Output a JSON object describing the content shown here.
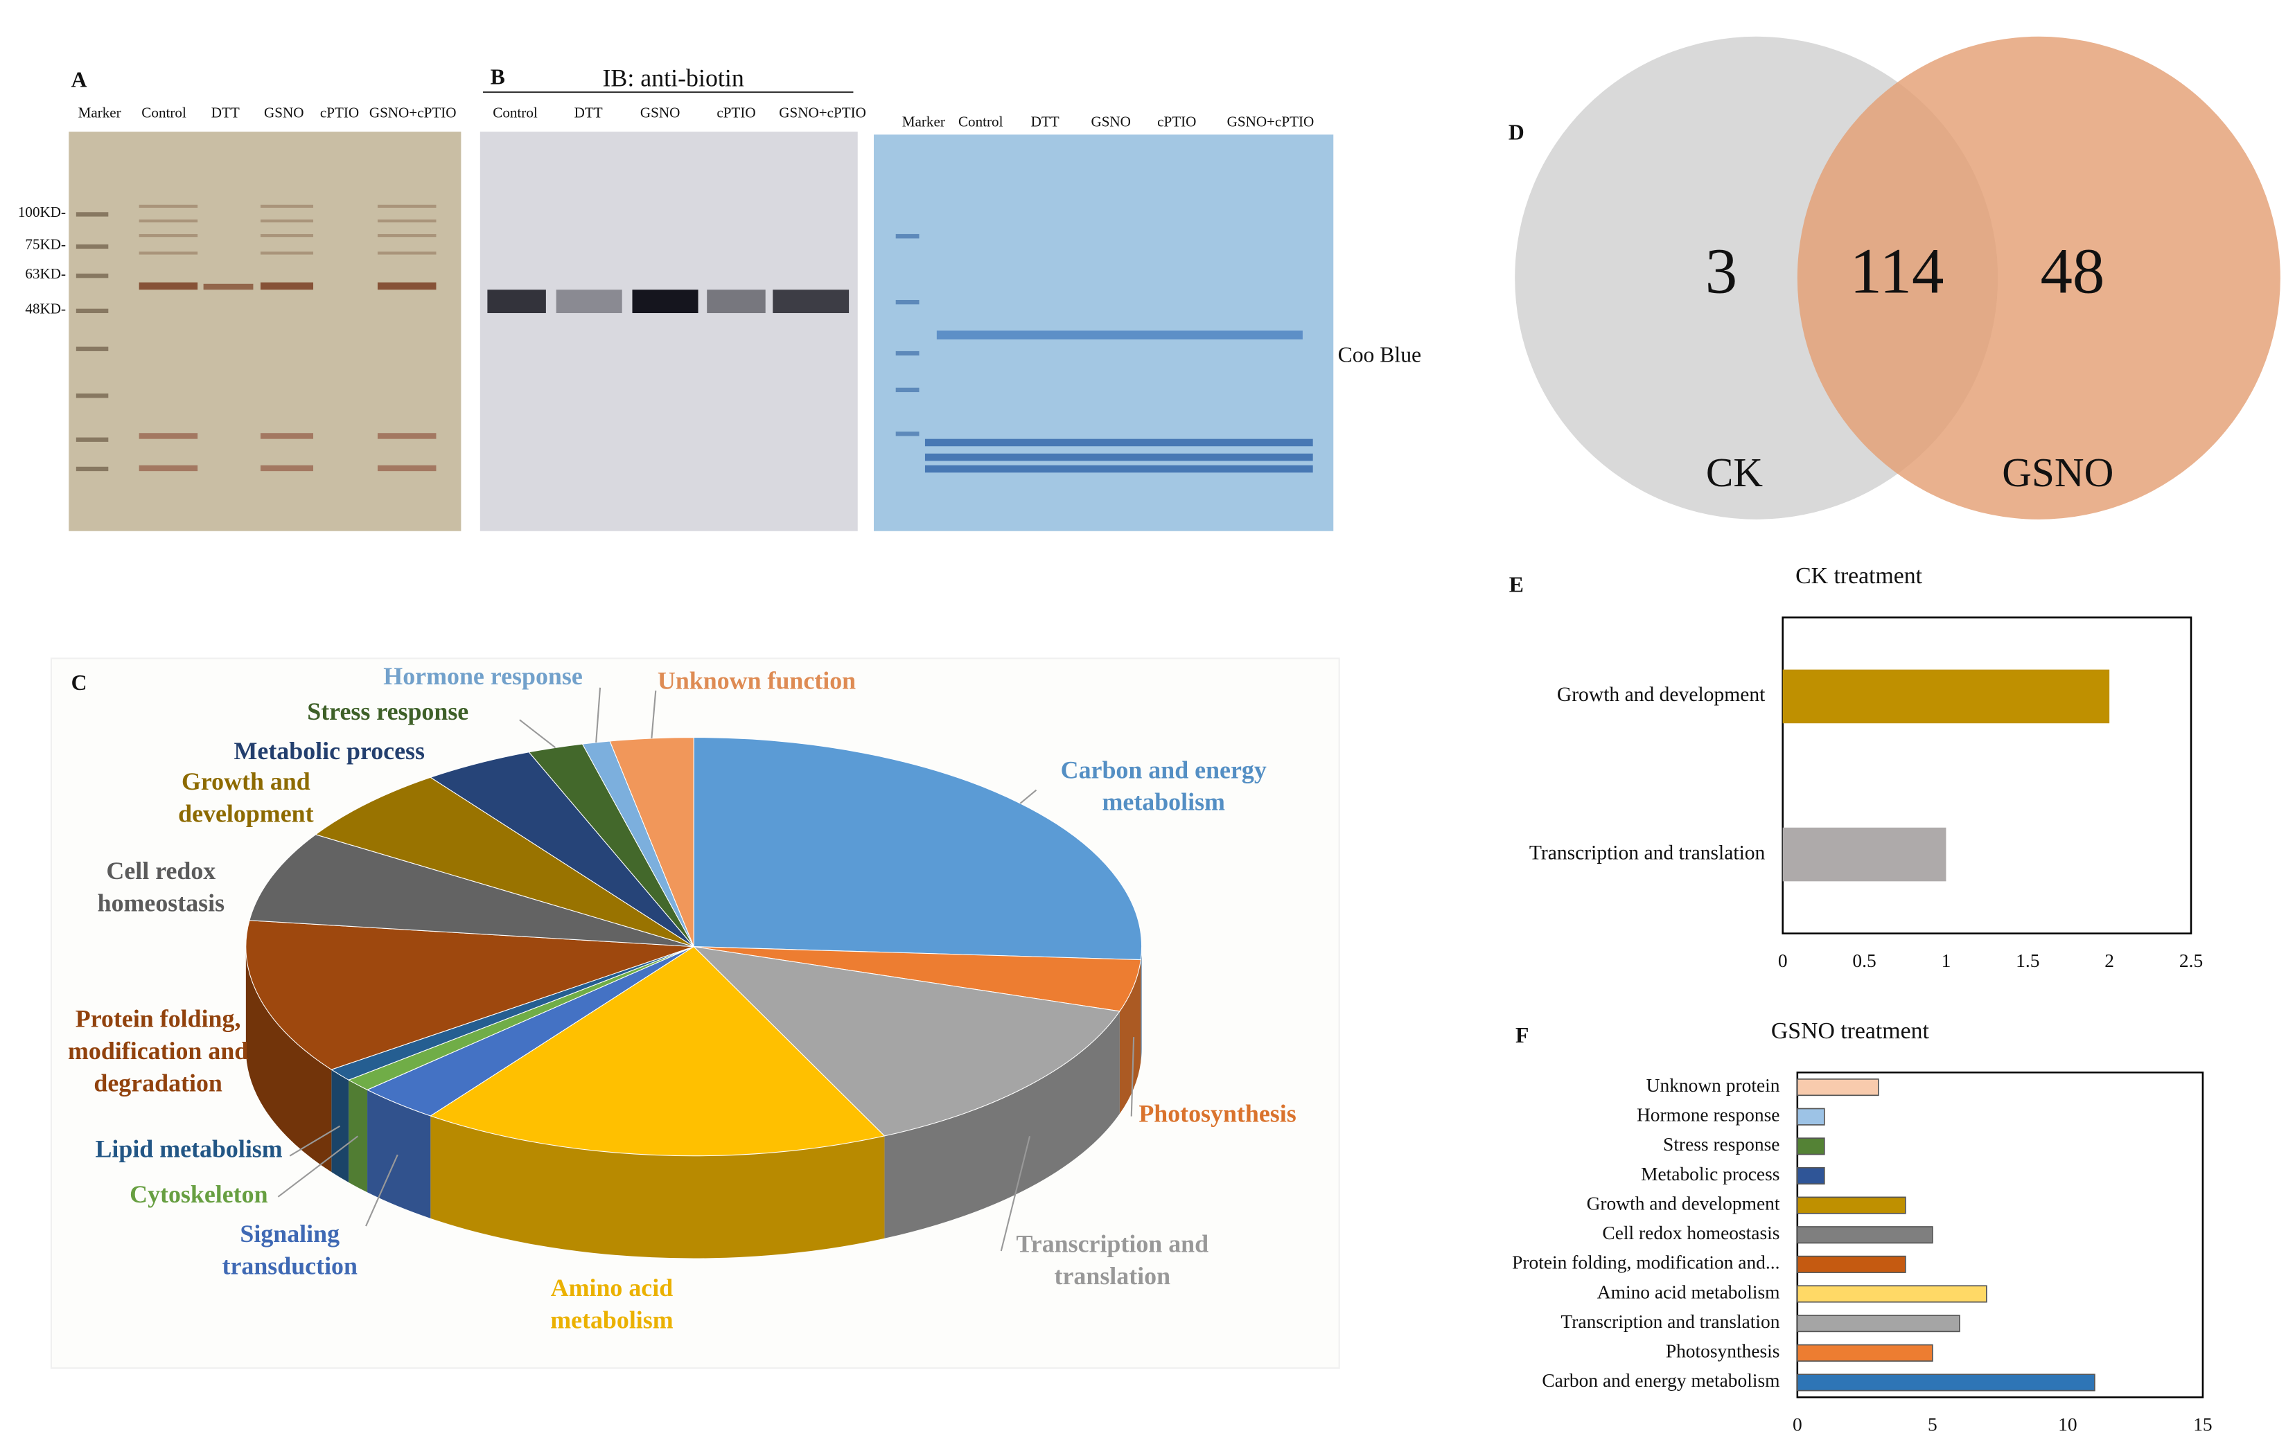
{
  "gels": {
    "a": {
      "letter": "A",
      "lanes": [
        "Marker",
        "Control",
        "DTT",
        "GSNO",
        "cPTIO",
        "GSNO+cPTIO"
      ],
      "markers": [
        "100KD-",
        "75KD-",
        "63KD-",
        "48KD-"
      ]
    },
    "b": {
      "letter": "B",
      "title": "IB: anti-biotin",
      "lanes": [
        "Control",
        "DTT",
        "GSNO",
        "cPTIO",
        "GSNO+cPTIO"
      ]
    },
    "coomassie": {
      "lanes": [
        "Marker",
        "Control",
        "DTT",
        "GSNO",
        "cPTIO",
        "GSNO+cPTIO"
      ],
      "label": "Coo Blue"
    }
  },
  "chart_data": [
    {
      "type": "pie",
      "panel": "C",
      "categories": [
        "Carbon and energy metabolism",
        "Photosynthesis",
        "Transcription and translation",
        "Amino acid metabolism",
        "Signaling transduction",
        "Cytoskeleton",
        "Lipid metabolism",
        "Protein folding, modification and degradation",
        "Cell redox homeostasis",
        "Growth and development",
        "Metabolic process",
        "Stress response",
        "Hormone response",
        "Unknown function"
      ],
      "values": [
        26,
        4,
        13,
        17,
        3,
        1,
        1,
        12,
        7,
        6,
        4,
        2,
        1,
        3
      ],
      "colors": [
        "#5b9bd5",
        "#ed7d31",
        "#a5a5a5",
        "#ffc000",
        "#4472c4",
        "#70ad47",
        "#255e91",
        "#9e480e",
        "#636363",
        "#997300",
        "#264478",
        "#43682b",
        "#7cafdd",
        "#f1975a"
      ]
    },
    {
      "type": "venn",
      "panel": "D",
      "sets": [
        {
          "name": "CK",
          "color": "#d9d9d9"
        },
        {
          "name": "GSNO",
          "color": "#e39d72"
        }
      ],
      "values": [
        3,
        114,
        48
      ]
    },
    {
      "type": "barh",
      "panel": "E",
      "title": "CK treatment",
      "categories": [
        "Growth and development",
        "Transcription and translation"
      ],
      "values": [
        2,
        1
      ],
      "colors": [
        "#bf9000",
        "#aeaaaa"
      ],
      "xlim": [
        0,
        2.5
      ],
      "xticks": [
        0,
        0.5,
        1,
        1.5,
        2,
        2.5
      ]
    },
    {
      "type": "barh",
      "panel": "F",
      "title": "GSNO treatment",
      "categories": [
        "Unknown protein",
        "Hormone response",
        "Stress response",
        "Metabolic process",
        "Growth and development",
        "Cell redox homeostasis",
        "Protein folding, modification and...",
        "Amino acid metabolism",
        "Transcription and translation",
        "Photosynthesis",
        "Carbon and energy metabolism"
      ],
      "values": [
        3,
        1,
        1,
        1,
        4,
        5,
        4,
        7,
        6,
        5,
        11
      ],
      "colors": [
        "#f8cbad",
        "#9dc3e6",
        "#548235",
        "#2f5597",
        "#bf9000",
        "#7f7f7f",
        "#c55a11",
        "#ffd966",
        "#a5a5a5",
        "#ed7d31",
        "#2e75b6"
      ],
      "xlim": [
        0,
        15
      ],
      "xticks": [
        0,
        5,
        10,
        15
      ]
    }
  ]
}
